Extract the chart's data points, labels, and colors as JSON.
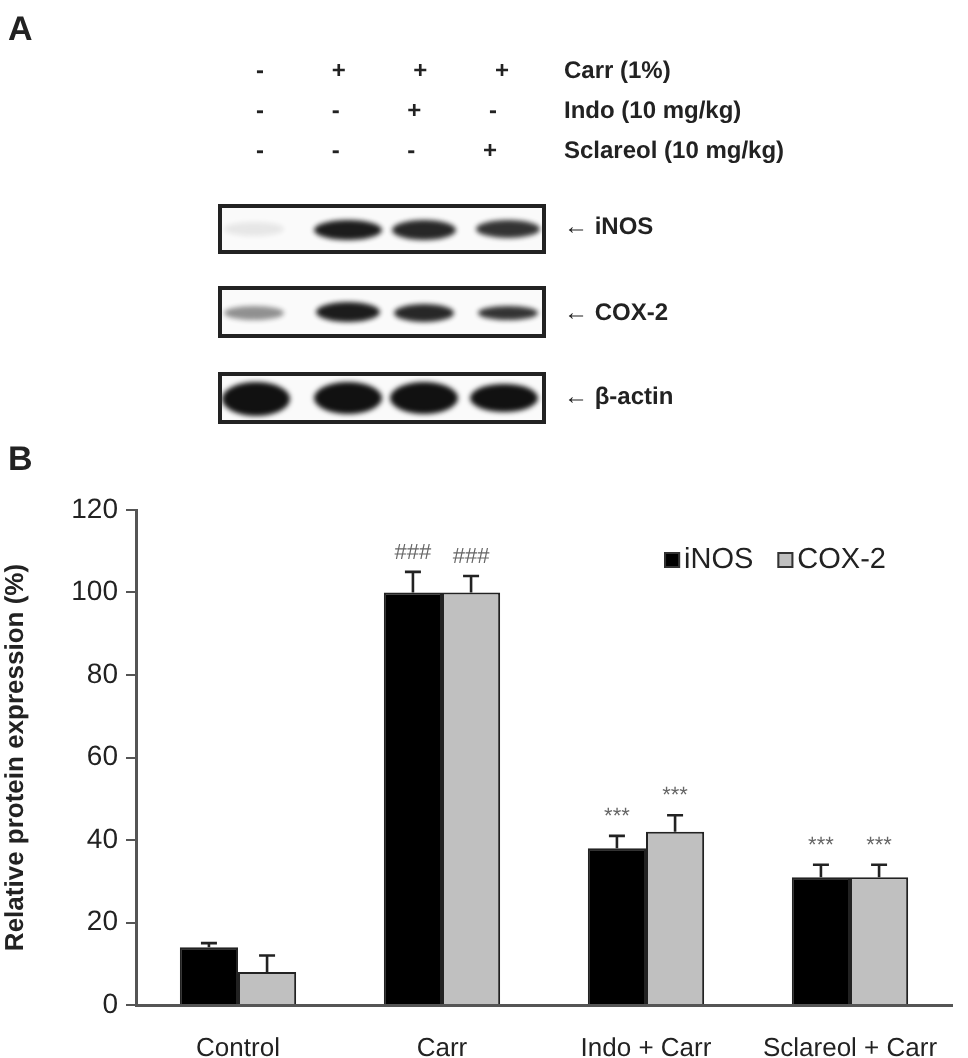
{
  "chart_data": {
    "type": "bar",
    "categories": [
      "Control",
      "Carr",
      "Indo + Carr",
      "Sclareol + Carr"
    ],
    "ylabel": "Relative protein expression (%)",
    "series": [
      {
        "name": "iNOS",
        "color": "#000000",
        "values": [
          14,
          100,
          38,
          31
        ],
        "errors": [
          [
            14,
            15
          ],
          [
            100,
            105
          ],
          [
            38,
            41
          ],
          [
            31,
            34
          ]
        ]
      },
      {
        "name": "COX-2",
        "color": "#c0c0c0",
        "values": [
          8,
          100,
          42,
          31
        ],
        "errors": [
          [
            8,
            12
          ],
          [
            100,
            104
          ],
          [
            42,
            46
          ],
          [
            31,
            34
          ]
        ]
      }
    ],
    "ylim": [
      0,
      120
    ],
    "yticks": [
      0,
      20,
      40,
      60,
      80,
      100,
      120
    ],
    "grid": false,
    "legend": "top right",
    "annotations": [
      "A",
      "- + + +",
      "Carr (1%)",
      "- - + -",
      "Indo (10 mg/kg)",
      "- - - +",
      "Sclareol (10 mg/kg)",
      "← iNOS",
      "← COX-2",
      "← β-actin",
      "B",
      {
        "text": "###",
        "x": "Carr",
        "y": 100
      },
      {
        "text": "###",
        "x": "Carr",
        "y": 100
      },
      {
        "text": "***",
        "x": "Indo + Carr",
        "y": 38
      },
      {
        "text": "***",
        "x": "Indo + Carr",
        "y": 42
      },
      {
        "text": "***",
        "x": "Sclareol + Carr",
        "y": 31
      },
      {
        "text": "***",
        "x": "Sclareol + Carr",
        "y": 31
      }
    ]
  }
}
